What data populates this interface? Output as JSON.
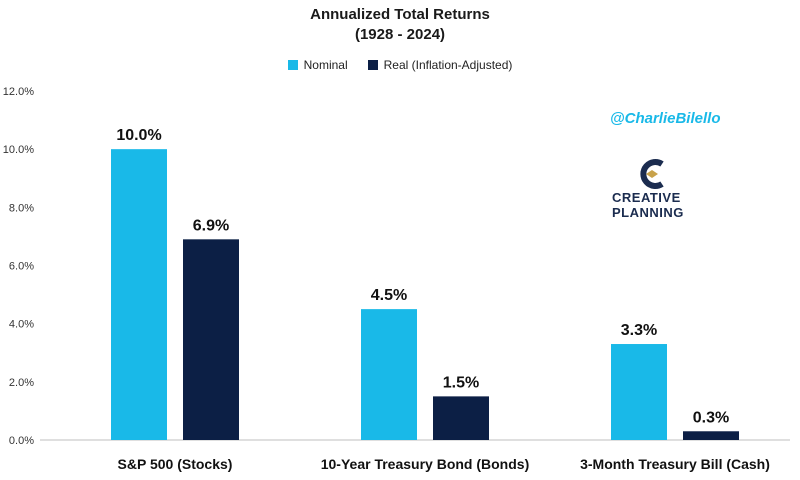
{
  "colors": {
    "nominal": "#19b9e8",
    "real": "#0c1f45",
    "accent": "#1b2c4f",
    "logo_gold": "#c8a24a",
    "handle": "#19b9e8"
  },
  "watermark": {
    "handle": "@CharlieBilello",
    "logo_line1": "CREATIVE",
    "logo_line2": "PLANNING"
  },
  "chart_data": {
    "type": "bar",
    "title": "Annualized Total Returns",
    "subtitle": "(1928 - 2024)",
    "categories": [
      "S&P 500 (Stocks)",
      "10-Year Treasury Bond (Bonds)",
      "3-Month Treasury Bill (Cash)"
    ],
    "series": [
      {
        "name": "Nominal",
        "values": [
          10.0,
          4.5,
          3.3
        ],
        "labels": [
          "10.0%",
          "4.5%",
          "3.3%"
        ]
      },
      {
        "name": "Real (Inflation-Adjusted)",
        "values": [
          6.9,
          1.5,
          0.3
        ],
        "labels": [
          "6.9%",
          "1.5%",
          "0.3%"
        ]
      }
    ],
    "ylim": [
      0,
      12
    ],
    "yticks": [
      0,
      2,
      4,
      6,
      8,
      10,
      12
    ],
    "ytick_labels": [
      "0.0%",
      "2.0%",
      "4.0%",
      "6.0%",
      "8.0%",
      "10.0%",
      "12.0%"
    ],
    "xlabel": "",
    "ylabel": "",
    "grid": false,
    "legend": "top-center"
  }
}
